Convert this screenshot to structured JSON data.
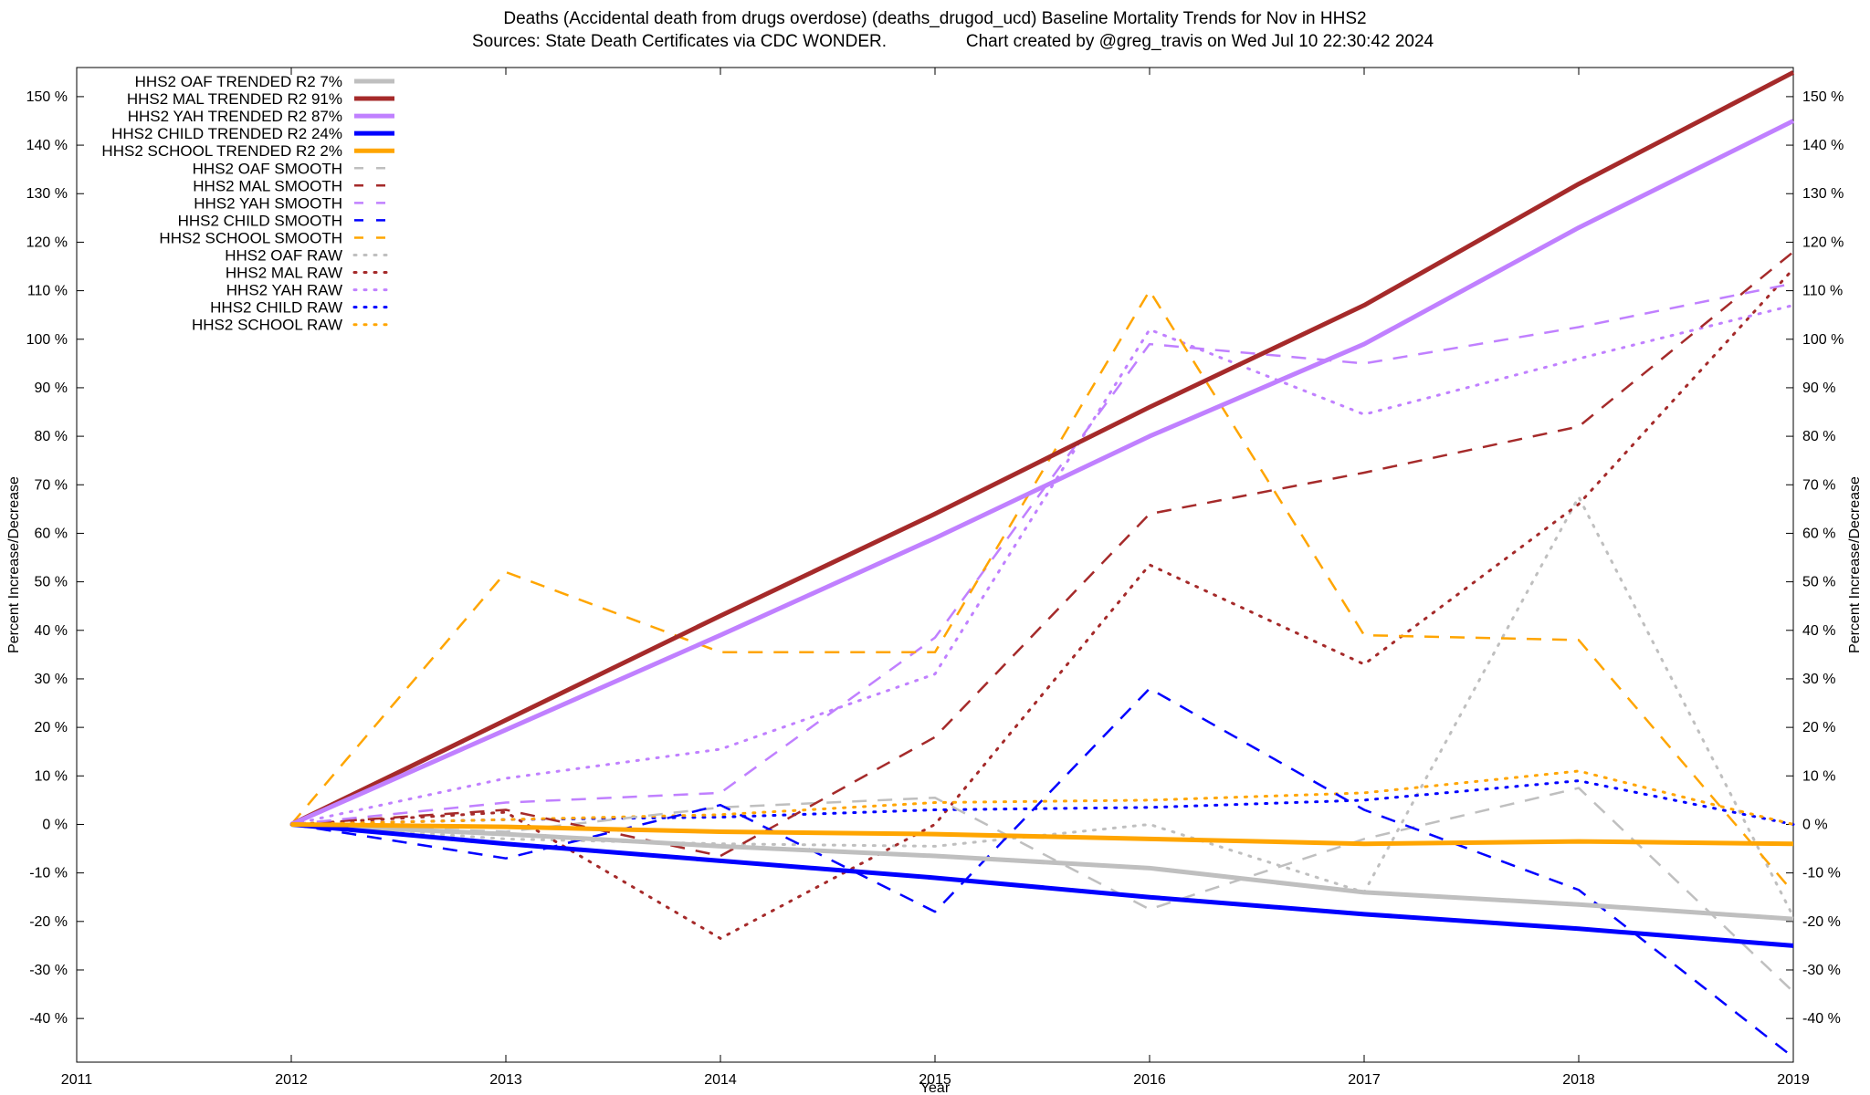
{
  "chart_data": {
    "type": "line",
    "title_line1": "Deaths (Accidental death from drugs overdose) (deaths_drugod_ucd)  Baseline Mortality Trends for Nov in HHS2",
    "title_line2_left": "Sources: State Death Certificates via CDC WONDER.",
    "title_line2_right": "Chart created by @greg_travis on Wed Jul 10 22:30:42 2024",
    "xlabel": "Year",
    "ylabel": "Percent Increase/Decrease",
    "ylabel_right": "Percent Increase/Decrease",
    "xlim": [
      2011,
      2019
    ],
    "ylim": [
      -49,
      156
    ],
    "x_ticks": [
      2011,
      2012,
      2013,
      2014,
      2015,
      2016,
      2017,
      2018,
      2019
    ],
    "y_ticks": [
      -40,
      -30,
      -20,
      -10,
      0,
      10,
      20,
      30,
      40,
      50,
      60,
      70,
      80,
      90,
      100,
      110,
      120,
      130,
      140,
      150
    ],
    "y_tick_suffix": " %",
    "grid": false,
    "legend_position": "top-left",
    "x": [
      2012,
      2013,
      2014,
      2015,
      2016,
      2017,
      2018,
      2019
    ],
    "series": [
      {
        "name": "HHS2 OAF TRENDED R2  7%",
        "group": "trended",
        "color": "#bfbfbf",
        "style": "solid",
        "values": [
          0,
          -2,
          -4.5,
          -6.5,
          -9,
          -14,
          -16.5,
          -19.5
        ]
      },
      {
        "name": "HHS2 MAL TRENDED R2  91%",
        "group": "trended",
        "color": "#a52a2a",
        "style": "solid",
        "values": [
          0,
          21.5,
          43,
          64,
          86,
          107,
          132,
          155
        ]
      },
      {
        "name": "HHS2 YAH TRENDED R2  87%",
        "group": "trended",
        "color": "#c080ff",
        "style": "solid",
        "values": [
          0,
          19.5,
          39,
          59,
          80,
          99,
          123,
          145
        ]
      },
      {
        "name": "HHS2 CHILD TRENDED R2  24%",
        "group": "trended",
        "color": "#0000ff",
        "style": "solid",
        "values": [
          0,
          -4,
          -7.5,
          -11,
          -15,
          -18.5,
          -21.5,
          -25
        ]
      },
      {
        "name": "HHS2 SCHOOL TRENDED R2   2%",
        "group": "trended",
        "color": "#ffa500",
        "style": "solid",
        "values": [
          0,
          -0.5,
          -1.5,
          -2,
          -3,
          -4,
          -3.5,
          -4
        ]
      },
      {
        "name": "HHS2 OAF SMOOTH",
        "group": "smooth",
        "color": "#bfbfbf",
        "style": "dash",
        "values": [
          0,
          -1.5,
          3.5,
          5.5,
          -17.5,
          -3,
          7.5,
          -34.5
        ]
      },
      {
        "name": "HHS2 MAL SMOOTH",
        "group": "smooth",
        "color": "#a52a2a",
        "style": "dash",
        "values": [
          0,
          3,
          -6.5,
          18,
          64,
          72.5,
          82,
          118
        ]
      },
      {
        "name": "HHS2 YAH SMOOTH",
        "group": "smooth",
        "color": "#c080ff",
        "style": "dash",
        "values": [
          0,
          4.5,
          6.5,
          38.5,
          99,
          95,
          102.5,
          111.5
        ]
      },
      {
        "name": "HHS2 CHILD SMOOTH",
        "group": "smooth",
        "color": "#0000ff",
        "style": "dash",
        "values": [
          0,
          -7,
          4,
          -18,
          28,
          3,
          -13.5,
          -48
        ]
      },
      {
        "name": "HHS2 SCHOOL SMOOTH",
        "group": "smooth",
        "color": "#ffa500",
        "style": "dash",
        "values": [
          0,
          52,
          35.5,
          35.5,
          110,
          39,
          38,
          -14
        ]
      },
      {
        "name": "HHS2 OAF RAW",
        "group": "raw",
        "color": "#bfbfbf",
        "style": "dot",
        "values": [
          0,
          -3,
          -4,
          -4.5,
          0,
          -14,
          67.5,
          -19
        ]
      },
      {
        "name": "HHS2 MAL RAW",
        "group": "raw",
        "color": "#a52a2a",
        "style": "dot",
        "values": [
          0,
          2.5,
          -23.5,
          0,
          53.5,
          33,
          66,
          114.5
        ]
      },
      {
        "name": "HHS2 YAH RAW",
        "group": "raw",
        "color": "#c080ff",
        "style": "dot",
        "values": [
          0,
          9.5,
          15.5,
          31,
          102,
          84.5,
          96,
          107
        ]
      },
      {
        "name": "HHS2 CHILD RAW",
        "group": "raw",
        "color": "#0000ff",
        "style": "dot",
        "values": [
          0,
          1,
          1.5,
          3,
          3.5,
          5,
          9,
          0
        ]
      },
      {
        "name": "HHS2 SCHOOL RAW",
        "group": "raw",
        "color": "#ffa500",
        "style": "dot",
        "values": [
          0,
          1,
          2,
          4.5,
          5,
          6.5,
          11,
          0
        ]
      }
    ]
  }
}
